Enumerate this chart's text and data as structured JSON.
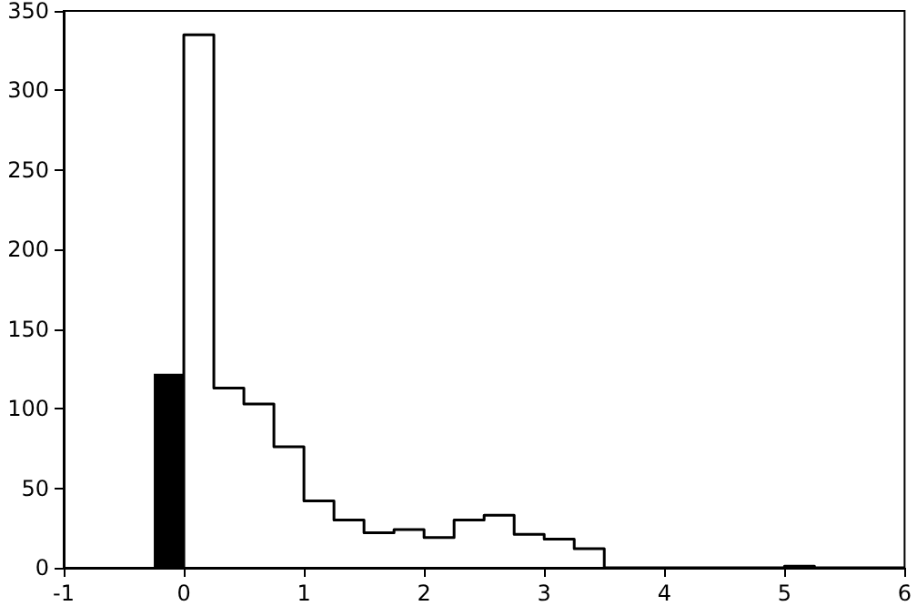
{
  "chart_data": {
    "type": "histogram",
    "bins": [
      -0.25,
      0
    ],
    "series": [
      {
        "color": "#000000",
        "values": [
          122
        ]
      },
      {
        "type": "step",
        "color": "#000000",
        "x": [
          0,
          0,
          0.25,
          0.5,
          0.75,
          1,
          1.25,
          1.5,
          1.75,
          2,
          2.25,
          2.5,
          2.75,
          3,
          3.25,
          3.5,
          3.75,
          4,
          4.25,
          4.5,
          4.75,
          5,
          5.25,
          5.5,
          5.75,
          6
        ],
        "values": [
          0,
          335,
          113,
          103,
          76,
          42,
          30,
          22,
          24,
          19,
          30,
          33,
          21,
          18,
          12,
          0,
          0,
          0,
          0,
          0,
          0,
          1,
          0,
          0,
          0,
          0
        ]
      }
    ],
    "xlim": [
      -1,
      6
    ],
    "xticks": [
      -1,
      0,
      1,
      2,
      3,
      4,
      5,
      6
    ],
    "ylim": [
      0,
      350
    ],
    "yticks": [
      0,
      50,
      100,
      150,
      200,
      250,
      300,
      350
    ],
    "grid": false
  }
}
